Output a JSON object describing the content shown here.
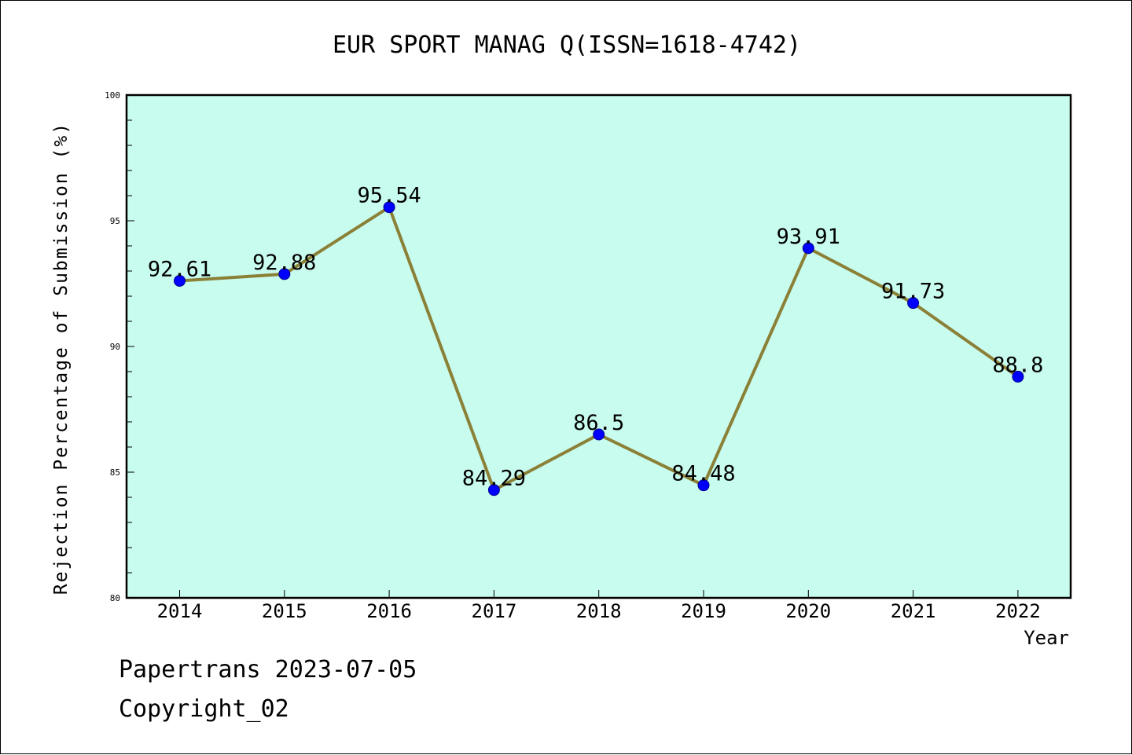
{
  "chart_data": {
    "type": "line",
    "title": "EUR SPORT MANAG Q(ISSN=1618-4742)",
    "xlabel": "Year",
    "ylabel": "Rejection Percentage of Submission (%)",
    "categories": [
      "2014",
      "2015",
      "2016",
      "2017",
      "2018",
      "2019",
      "2020",
      "2021",
      "2022"
    ],
    "values": [
      92.61,
      92.88,
      95.54,
      84.29,
      86.5,
      84.48,
      93.91,
      91.73,
      88.8
    ],
    "data_labels": [
      "92.61",
      "92.88",
      "95.54",
      "84.29",
      "86.5",
      "84.48",
      "93.91",
      "91.73",
      "88.8"
    ],
    "ylim": [
      80,
      100
    ],
    "yticks": [
      80,
      85,
      90,
      95,
      100
    ],
    "grid": false,
    "colors": {
      "plot_background": "#c8fcee",
      "line": "#8b8037",
      "marker_fill": "#0000ff",
      "marker_edge": "#00008b"
    }
  },
  "footer": {
    "line1": "Papertrans 2023-07-05",
    "line2": "Copyright_02"
  }
}
